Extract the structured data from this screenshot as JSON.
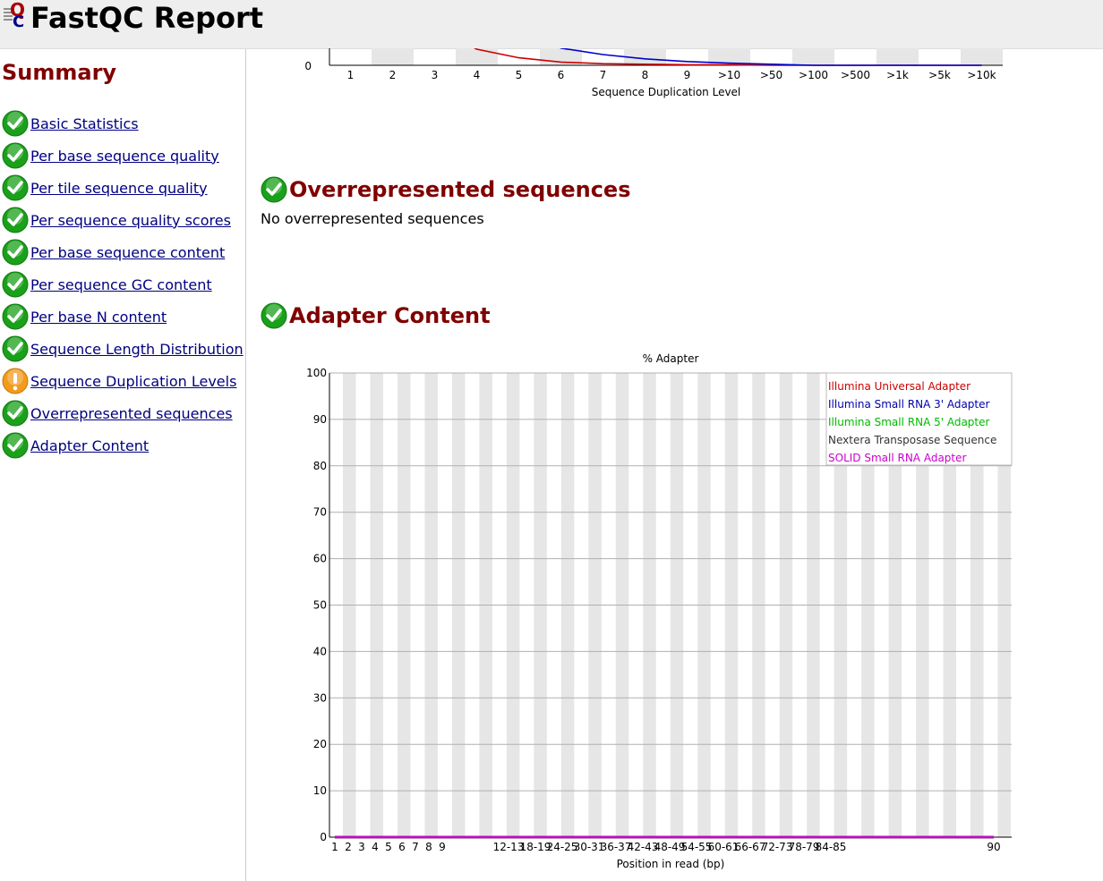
{
  "header": {
    "title": "FastQC Report",
    "logo_text": "QC"
  },
  "summary": {
    "title": "Summary",
    "items": [
      {
        "label": "Basic Statistics",
        "status": "pass"
      },
      {
        "label": "Per base sequence quality",
        "status": "pass"
      },
      {
        "label": "Per tile sequence quality",
        "status": "pass"
      },
      {
        "label": "Per sequence quality scores",
        "status": "pass"
      },
      {
        "label": "Per base sequence content",
        "status": "pass"
      },
      {
        "label": "Per sequence GC content",
        "status": "pass"
      },
      {
        "label": "Per base N content",
        "status": "pass"
      },
      {
        "label": "Sequence Length Distribution",
        "status": "pass"
      },
      {
        "label": "Sequence Duplication Levels",
        "status": "warn"
      },
      {
        "label": "Overrepresented sequences",
        "status": "pass"
      },
      {
        "label": "Adapter Content",
        "status": "pass"
      }
    ]
  },
  "sections": {
    "overrepresented": {
      "title": "Overrepresented sequences",
      "text": "No overrepresented sequences",
      "status": "pass"
    },
    "adapter": {
      "title": "Adapter Content",
      "status": "pass"
    }
  },
  "colors": {
    "heading": "#800000",
    "link": "#000080",
    "pass": "#1aa01a",
    "warn": "#f29b1c"
  },
  "chart_data": [
    {
      "type": "line",
      "partial": true,
      "xlabel": "Sequence Duplication Level",
      "categories": [
        "1",
        "2",
        "3",
        "4",
        "5",
        "6",
        "7",
        "8",
        "9",
        ">10",
        ">50",
        ">100",
        ">500",
        ">1k",
        ">5k",
        ">10k"
      ],
      "visible_y_ticks": [
        "0"
      ],
      "series": [
        {
          "color": "#cc0000",
          "values_visible_pct_of_ylim": [
            null,
            null,
            null,
            1.5,
            0.7,
            0.3,
            0.15,
            0.1,
            0.05,
            0.05,
            0,
            0,
            0,
            0,
            0,
            0
          ]
        },
        {
          "color": "#0000cc",
          "values_visible_pct_of_ylim": [
            null,
            null,
            null,
            null,
            null,
            1.6,
            1.0,
            0.6,
            0.35,
            0.2,
            0.1,
            0,
            0,
            0,
            0,
            0
          ]
        }
      ]
    },
    {
      "type": "line",
      "title": "% Adapter",
      "xlabel": "Position in read (bp)",
      "ylim": [
        0,
        100
      ],
      "y_ticks": [
        0,
        10,
        20,
        30,
        40,
        50,
        60,
        70,
        80,
        90,
        100
      ],
      "categories": [
        "1",
        "2",
        "3",
        "4",
        "5",
        "6",
        "7",
        "8",
        "9",
        "12-13",
        "18-19",
        "24-25",
        "30-31",
        "36-37",
        "42-43",
        "48-49",
        "54-55",
        "60-61",
        "66-67",
        "72-73",
        "78-79",
        "84-85",
        "90"
      ],
      "legend_position": "top-right",
      "series": [
        {
          "name": "Illumina Universal Adapter",
          "color": "#cc0000",
          "values": [
            0,
            0,
            0,
            0,
            0,
            0,
            0,
            0,
            0,
            0,
            0,
            0,
            0,
            0,
            0,
            0,
            0,
            0,
            0,
            0,
            0,
            0,
            0
          ]
        },
        {
          "name": "Illumina Small RNA 3' Adapter",
          "color": "#0000aa",
          "values": [
            0,
            0,
            0,
            0,
            0,
            0,
            0,
            0,
            0,
            0,
            0,
            0,
            0,
            0,
            0,
            0,
            0,
            0,
            0,
            0,
            0,
            0,
            0
          ]
        },
        {
          "name": "Illumina Small RNA 5' Adapter",
          "color": "#00bb00",
          "values": [
            0,
            0,
            0,
            0,
            0,
            0,
            0,
            0,
            0,
            0,
            0,
            0,
            0,
            0,
            0,
            0,
            0,
            0,
            0,
            0,
            0,
            0,
            0
          ]
        },
        {
          "name": "Nextera Transposase Sequence",
          "color": "#333333",
          "values": [
            0,
            0,
            0,
            0,
            0,
            0,
            0,
            0,
            0,
            0,
            0,
            0,
            0,
            0,
            0,
            0,
            0,
            0,
            0,
            0,
            0,
            0,
            0
          ]
        },
        {
          "name": "SOLID Small RNA Adapter",
          "color": "#cc00cc",
          "values": [
            0,
            0,
            0,
            0,
            0,
            0,
            0,
            0,
            0,
            0,
            0,
            0,
            0,
            0,
            0,
            0,
            0,
            0,
            0,
            0,
            0,
            0,
            0
          ]
        }
      ]
    }
  ]
}
